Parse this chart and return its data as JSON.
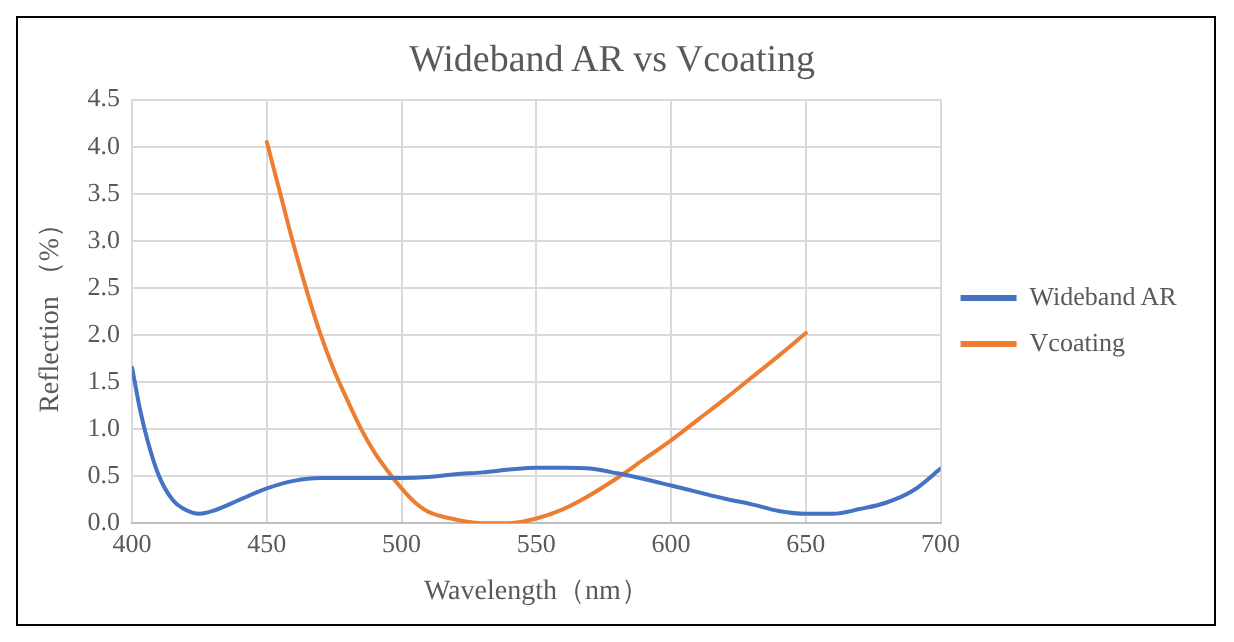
{
  "chart_data": {
    "type": "line",
    "title": "Wideband AR vs Vcoating",
    "xlabel": "Wavelength（nm）",
    "ylabel": "Reflection （%）",
    "xlim": [
      400,
      700
    ],
    "xticks": [
      400,
      450,
      500,
      550,
      600,
      650,
      700
    ],
    "ylim": [
      0,
      4.5
    ],
    "yticks": [
      {
        "value": 0,
        "label": "0.0"
      },
      {
        "value": 0.5,
        "label": "0.5"
      },
      {
        "value": 1,
        "label": "1.0"
      },
      {
        "value": 1.5,
        "label": "1.5"
      },
      {
        "value": 2,
        "label": "2.0"
      },
      {
        "value": 2.5,
        "label": "2.5"
      },
      {
        "value": 3,
        "label": "3.0"
      },
      {
        "value": 3.5,
        "label": "3.5"
      },
      {
        "value": 4,
        "label": "4.0"
      },
      {
        "value": 4.5,
        "label": "4.5"
      }
    ],
    "grid": true,
    "legend": "right",
    "marker": "none",
    "line_style": "solid",
    "series": [
      {
        "name": "Wideband AR",
        "color": "#4472c4",
        "x": [
          400,
          403,
          406,
          410,
          415,
          420,
          425,
          430,
          440,
          450,
          460,
          470,
          480,
          500,
          510,
          520,
          530,
          540,
          550,
          560,
          570,
          580,
          590,
          600,
          610,
          620,
          630,
          640,
          650,
          660,
          670,
          680,
          690,
          700
        ],
        "values": [
          1.65,
          1.2,
          0.85,
          0.5,
          0.25,
          0.14,
          0.1,
          0.13,
          0.25,
          0.37,
          0.45,
          0.48,
          0.48,
          0.48,
          0.49,
          0.52,
          0.54,
          0.57,
          0.59,
          0.59,
          0.58,
          0.53,
          0.47,
          0.4,
          0.33,
          0.26,
          0.2,
          0.13,
          0.1,
          0.1,
          0.15,
          0.22,
          0.35,
          0.58
        ]
      },
      {
        "name": "Vcoating",
        "color": "#ed7d31",
        "x": [
          450,
          455,
          460,
          465,
          470,
          475,
          480,
          485,
          490,
          495,
          500,
          505,
          510,
          520,
          530,
          540,
          550,
          560,
          570,
          580,
          590,
          600,
          610,
          620,
          630,
          640,
          650
        ],
        "values": [
          4.05,
          3.5,
          2.95,
          2.45,
          2.0,
          1.62,
          1.3,
          1.0,
          0.75,
          0.55,
          0.37,
          0.22,
          0.12,
          0.04,
          0.0,
          0.0,
          0.05,
          0.15,
          0.3,
          0.48,
          0.68,
          0.88,
          1.1,
          1.32,
          1.55,
          1.78,
          2.02
        ]
      }
    ]
  }
}
